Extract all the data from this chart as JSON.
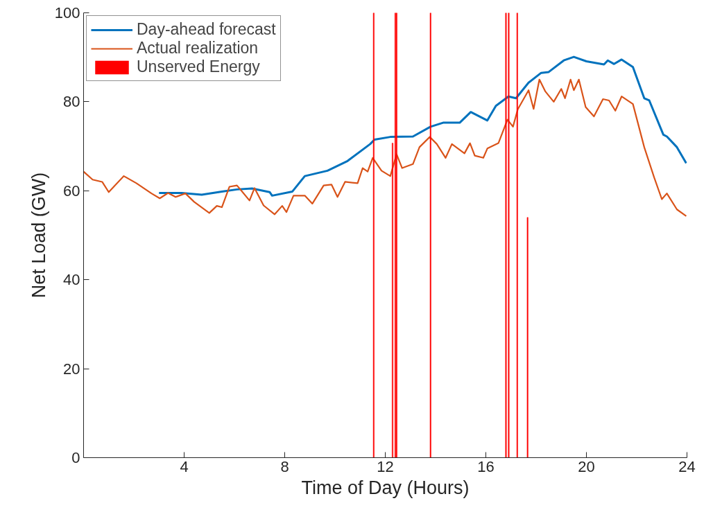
{
  "chart_data": {
    "type": "line",
    "xlabel": "Time of Day (Hours)",
    "ylabel": "Net Load (GW)",
    "xlim": [
      0,
      24
    ],
    "xticks": [
      4,
      8,
      12,
      16,
      20,
      24
    ],
    "ylim": [
      0,
      100
    ],
    "yticks": [
      0,
      20,
      40,
      60,
      80,
      100
    ],
    "grid": false,
    "legend": "top left",
    "series": [
      {
        "name": "Day-ahead forecast",
        "color": "#0072bd",
        "x": [
          3.0,
          3.9,
          4.7,
          5.5,
          6.1,
          6.7,
          7.4,
          7.5,
          8.3,
          8.8,
          9.7,
          10.5,
          11.4,
          11.57,
          12.2,
          13.1,
          13.8,
          14.3,
          14.96,
          15.4,
          16.06,
          16.4,
          16.9,
          17.2,
          17.7,
          18.2,
          18.5,
          19.1,
          19.5,
          20.0,
          20.7,
          20.85,
          21.1,
          21.4,
          21.85,
          22.3,
          22.5,
          23.06,
          23.2,
          23.6,
          23.97
        ],
        "values": [
          59.5,
          59.5,
          59.1,
          59.8,
          60.3,
          60.5,
          59.7,
          58.9,
          59.8,
          63.3,
          64.5,
          66.7,
          70.5,
          71.5,
          72.1,
          72.2,
          74.4,
          75.3,
          75.3,
          77.7,
          75.8,
          79.1,
          81.2,
          80.8,
          84.3,
          86.5,
          86.7,
          89.3,
          90.1,
          89.1,
          88.4,
          89.3,
          88.5,
          89.5,
          87.8,
          80.8,
          80.3,
          72.6,
          72.2,
          69.8,
          66.2
        ]
      },
      {
        "name": "Actual realization",
        "color": "#d95319",
        "x": [
          0,
          0.36,
          0.74,
          1.0,
          1.6,
          2.1,
          2.7,
          3.03,
          3.36,
          3.66,
          4.05,
          4.4,
          5.0,
          5.3,
          5.5,
          5.8,
          6.1,
          6.25,
          6.6,
          6.8,
          7.16,
          7.6,
          7.9,
          8.07,
          8.35,
          8.8,
          9.1,
          9.55,
          9.86,
          10.1,
          10.4,
          10.9,
          11.1,
          11.3,
          11.5,
          11.85,
          12.2,
          12.45,
          12.67,
          13.1,
          13.36,
          13.77,
          14.05,
          14.4,
          14.65,
          15.15,
          15.37,
          15.56,
          15.9,
          16.06,
          16.5,
          16.86,
          17.08,
          17.27,
          17.7,
          17.9,
          18.13,
          18.37,
          18.7,
          19.0,
          19.15,
          19.37,
          19.5,
          19.7,
          19.97,
          20.3,
          20.66,
          20.9,
          21.15,
          21.4,
          21.85,
          22.3,
          22.7,
          23.0,
          23.2,
          23.6,
          23.97
        ],
        "values": [
          64.3,
          62.5,
          62,
          59.7,
          63.3,
          61.7,
          59.4,
          58.3,
          59.5,
          58.6,
          59.4,
          57.5,
          55,
          56.6,
          56.3,
          60.9,
          61.2,
          60.2,
          57.8,
          60.6,
          56.7,
          54.7,
          56.6,
          55.2,
          58.9,
          58.9,
          57.1,
          61.2,
          61.4,
          58.6,
          62,
          61.7,
          65.1,
          64.3,
          67.4,
          64.5,
          63.3,
          68.2,
          65.1,
          66,
          69.8,
          72.1,
          70.5,
          67.4,
          70.5,
          68.4,
          70.7,
          67.9,
          67.4,
          69.5,
          70.7,
          76,
          74.4,
          78.3,
          82.6,
          78.4,
          85,
          82.3,
          80,
          82.9,
          80.8,
          85,
          82.6,
          85,
          78.8,
          76.7,
          80.6,
          80.3,
          78,
          81.2,
          79.5,
          69.8,
          62.9,
          58.1,
          59.4,
          55.8,
          54.3
        ]
      },
      {
        "name": "Unserved Energy",
        "type": "bar",
        "color": "#ff0000",
        "x": [
          11.54,
          12.29,
          12.4,
          12.45,
          13.8,
          16.8,
          16.91,
          17.25,
          17.66
        ],
        "values": [
          100,
          70.7,
          100,
          100,
          100,
          100,
          100,
          100,
          54
        ]
      }
    ]
  }
}
